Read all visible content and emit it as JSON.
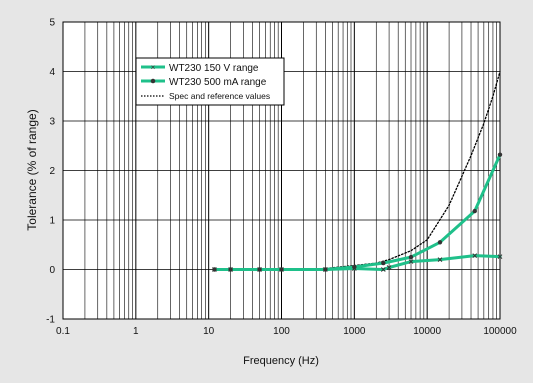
{
  "chart_data": {
    "type": "line",
    "xlabel": "Frequency (Hz)",
    "ylabel": "Tolerance (% of range)",
    "x_scale": "log",
    "xlim": [
      0.1,
      100000
    ],
    "ylim": [
      -1,
      5
    ],
    "x_ticks": [
      0.1,
      1,
      10,
      100,
      1000,
      10000,
      100000
    ],
    "x_tick_labels": [
      "0.1",
      "1",
      "10",
      "100",
      "1000",
      "10000",
      "100000"
    ],
    "y_ticks": [
      -1,
      0,
      1,
      2,
      3,
      4,
      5
    ],
    "y_tick_labels": [
      "-1",
      "0",
      "1",
      "2",
      "3",
      "4",
      "5"
    ],
    "grid": true,
    "legend_position": "top-left",
    "series": [
      {
        "name": "WT230 150 V range",
        "color": "#1fc08a",
        "marker": "x",
        "style": "solid",
        "x": [
          12,
          20,
          50,
          100,
          400,
          1000,
          2500,
          3000,
          6000,
          15000,
          45000,
          100000
        ],
        "y": [
          0,
          0,
          0,
          0,
          0,
          0.02,
          0,
          0.04,
          0.16,
          0.2,
          0.28,
          0.26
        ]
      },
      {
        "name": "WT230 500 mA range",
        "color": "#1fc08a",
        "marker": "circle",
        "style": "solid",
        "x": [
          12,
          20,
          50,
          100,
          400,
          1000,
          2500,
          6000,
          15000,
          45000,
          100000
        ],
        "y": [
          0,
          0,
          0,
          0,
          0,
          0.05,
          0.13,
          0.25,
          0.55,
          1.18,
          2.32
        ]
      },
      {
        "name": "Spec and reference values",
        "color": "#000000",
        "marker": "none",
        "style": "dotted",
        "x": [
          12,
          20,
          50,
          100,
          400,
          1000,
          2000,
          3000,
          6000,
          10000,
          20000,
          40000,
          60000,
          80000,
          100000
        ],
        "y": [
          0,
          0,
          0,
          0,
          0.02,
          0.08,
          0.13,
          0.2,
          0.38,
          0.6,
          1.3,
          2.3,
          2.95,
          3.5,
          4.0
        ]
      }
    ]
  }
}
